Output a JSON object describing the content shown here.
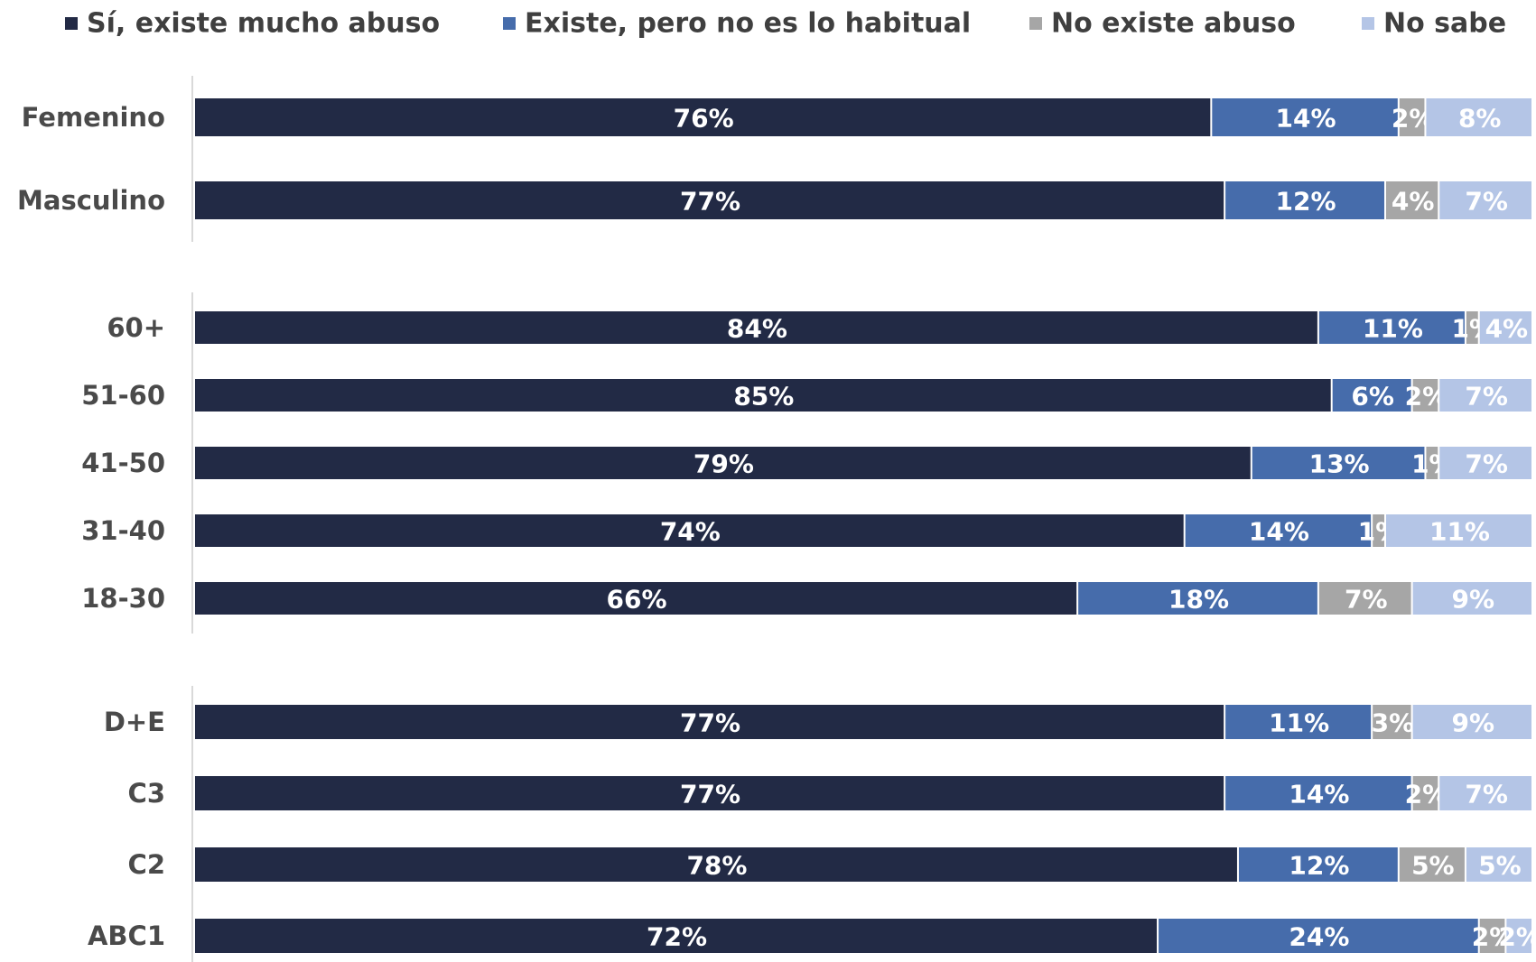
{
  "chart_data": {
    "type": "bar",
    "orientation": "horizontal",
    "stacked": true,
    "legend_position": "top",
    "grid": false,
    "xlim": [
      0,
      100
    ],
    "series": [
      {
        "name": "Sí, existe mucho abuso",
        "color": "#222a45"
      },
      {
        "name": "Existe, pero no es lo habitual",
        "color": "#466cab"
      },
      {
        "name": "No existe abuso",
        "color": "#a6a6a6"
      },
      {
        "name": "No sabe",
        "color": "#b4c5e6"
      }
    ],
    "groups": [
      {
        "rows": [
          {
            "category": "Femenino",
            "values": [
              76,
              14,
              2,
              8
            ],
            "labels": [
              "76%",
              "14%",
              "2%",
              "8%"
            ]
          },
          {
            "category": "Masculino",
            "values": [
              77,
              12,
              4,
              7
            ],
            "labels": [
              "77%",
              "12%",
              "4%",
              "7%"
            ]
          }
        ]
      },
      {
        "rows": [
          {
            "category": "60+",
            "values": [
              84,
              11,
              1,
              4
            ],
            "labels": [
              "84%",
              "11%",
              "1%",
              "4%"
            ]
          },
          {
            "category": "51-60",
            "values": [
              85,
              6,
              2,
              7
            ],
            "labels": [
              "85%",
              "6%",
              "2%",
              "7%"
            ]
          },
          {
            "category": "41-50",
            "values": [
              79,
              13,
              1,
              7
            ],
            "labels": [
              "79%",
              "13%",
              "1%",
              "7%"
            ]
          },
          {
            "category": "31-40",
            "values": [
              74,
              14,
              1,
              11
            ],
            "labels": [
              "74%",
              "14%",
              "1%",
              "11%"
            ]
          },
          {
            "category": "18-30",
            "values": [
              66,
              18,
              7,
              9
            ],
            "labels": [
              "66%",
              "18%",
              "7%",
              "9%"
            ]
          }
        ]
      },
      {
        "rows": [
          {
            "category": "D+E",
            "values": [
              77,
              11,
              3,
              9
            ],
            "labels": [
              "77%",
              "11%",
              "3%",
              "9%"
            ]
          },
          {
            "category": "C3",
            "values": [
              77,
              14,
              2,
              7
            ],
            "labels": [
              "77%",
              "14%",
              "2%",
              "7%"
            ]
          },
          {
            "category": "C2",
            "values": [
              78,
              12,
              5,
              5
            ],
            "labels": [
              "78%",
              "12%",
              "5%",
              "5%"
            ]
          },
          {
            "category": "ABC1",
            "values": [
              72,
              24,
              2,
              2
            ],
            "labels": [
              "72%",
              "24%",
              "2%",
              "2%"
            ]
          }
        ]
      }
    ]
  }
}
